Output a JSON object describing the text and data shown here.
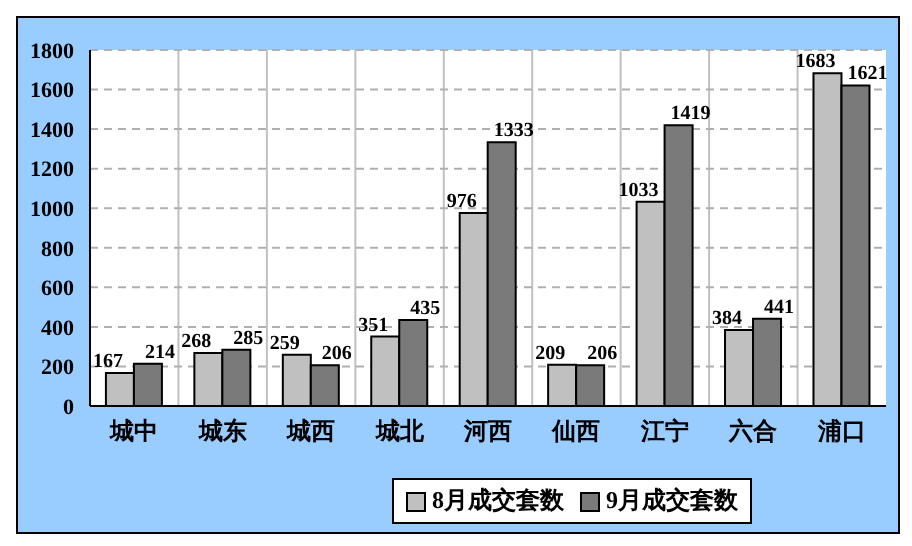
{
  "chart_data": {
    "type": "bar",
    "categories": [
      "城中",
      "城东",
      "城西",
      "城北",
      "河西",
      "仙西",
      "江宁",
      "六合",
      "浦口"
    ],
    "series": [
      {
        "name": "8月成交套数",
        "color": "#c0c0c0",
        "values": [
          167,
          268,
          259,
          351,
          976,
          209,
          1033,
          384,
          1683
        ]
      },
      {
        "name": "9月成交套数",
        "color": "#7a7a7a",
        "values": [
          214,
          285,
          206,
          435,
          1333,
          206,
          1419,
          441,
          1621
        ]
      }
    ],
    "ylim": [
      0,
      1800
    ],
    "yticks": [
      0,
      200,
      400,
      600,
      800,
      1000,
      1200,
      1400,
      1600,
      1800
    ],
    "grid": true,
    "legend": "bottom",
    "data_labels": true
  }
}
